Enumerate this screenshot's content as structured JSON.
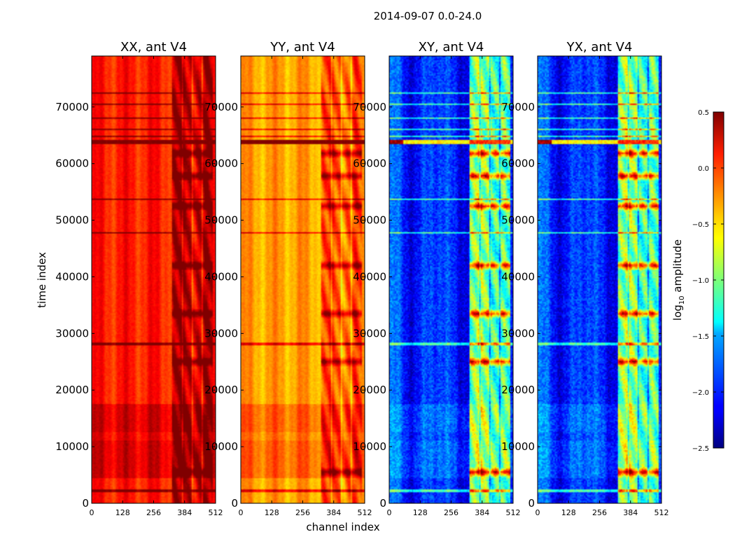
{
  "chart_data": {
    "type": "heatmap",
    "title": "2014-09-07 0.0-24.0",
    "xlabel": "channel index",
    "ylabel": "time index",
    "x_ticks": [
      0,
      128,
      256,
      384,
      512
    ],
    "y_ticks": [
      0,
      10000,
      20000,
      30000,
      40000,
      50000,
      60000,
      70000
    ],
    "xlim": [
      0,
      512
    ],
    "ylim": [
      0,
      79000
    ],
    "panels": [
      {
        "title": "XX, ant V4",
        "base": 0.05,
        "band_boost": 0.25,
        "style": "parallel"
      },
      {
        "title": "YY, ant V4",
        "base": -0.35,
        "band_boost": 0.2,
        "style": "parallel"
      },
      {
        "title": "XY, ant V4",
        "base": -2.0,
        "band_boost": 0.9,
        "style": "cross"
      },
      {
        "title": "YX, ant V4",
        "base": -2.0,
        "band_boost": 0.9,
        "style": "cross"
      }
    ],
    "colorbar": {
      "label_main": "log",
      "label_sub": "10",
      "label_rest": " amplitude",
      "min": -2.5,
      "max": 0.5,
      "ticks": [
        0.5,
        0.0,
        -0.5,
        -1.0,
        -1.5,
        -2.0,
        -2.5
      ],
      "tick_labels": [
        "0.5",
        "0.0",
        "−0.5",
        "−1.0",
        "−1.5",
        "−2.0",
        "−2.5"
      ],
      "colormap": "jet"
    },
    "features": {
      "bright_channel_band": [
        330,
        500
      ],
      "rfi_time": 63800,
      "horizontal_lines": [
        2200,
        28200,
        47800,
        53700,
        64800,
        66000,
        68000,
        70500,
        72500
      ],
      "strong_rows": [
        42000,
        33500,
        25000,
        52500,
        57800,
        61800,
        5500
      ]
    }
  }
}
